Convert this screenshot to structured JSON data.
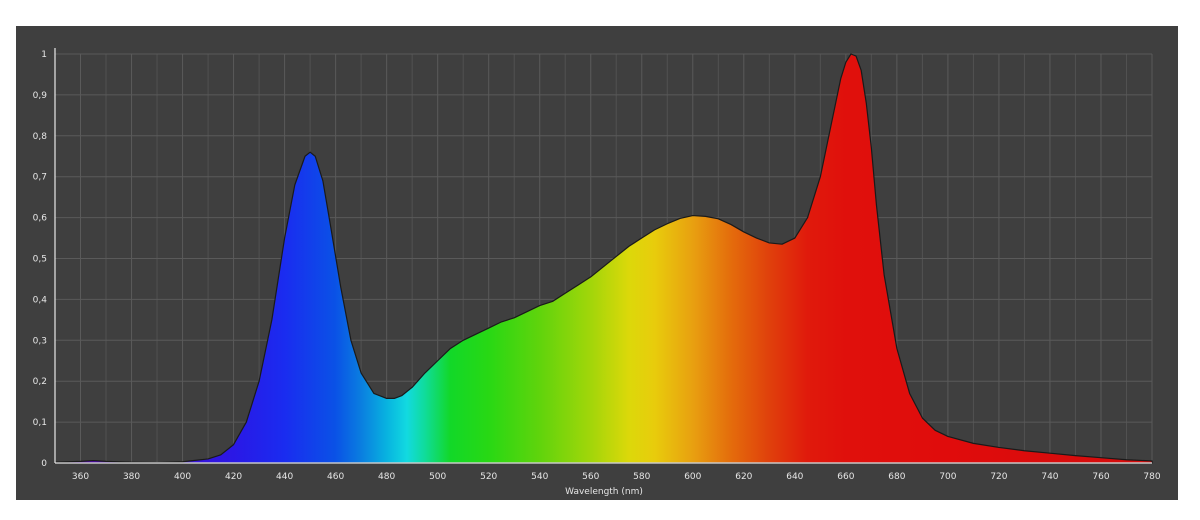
{
  "chart_data": {
    "type": "area",
    "title": "",
    "xlabel": "Wavelength (nm)",
    "ylabel": "",
    "xlim": [
      350,
      780
    ],
    "ylim": [
      0,
      1
    ],
    "grid": true,
    "x_ticks": [
      "360",
      "380",
      "400",
      "420",
      "440",
      "460",
      "480",
      "500",
      "520",
      "540",
      "560",
      "580",
      "600",
      "620",
      "640",
      "660",
      "680",
      "700",
      "720",
      "740",
      "760",
      "780"
    ],
    "y_ticks": [
      "0",
      "0,1",
      "0,2",
      "0,3",
      "0,4",
      "0,5",
      "0,6",
      "0,7",
      "0,8",
      "0,9",
      "1"
    ],
    "fill": "visible-spectrum gradient",
    "series": [
      {
        "x": [
          350,
          360,
          365,
          370,
          380,
          390,
          400,
          410,
          415,
          420,
          425,
          430,
          435,
          440,
          444,
          448,
          450,
          452,
          455,
          458,
          462,
          466,
          470,
          475,
          480,
          483,
          486,
          490,
          495,
          500,
          505,
          510,
          515,
          520,
          525,
          530,
          535,
          540,
          545,
          550,
          555,
          560,
          565,
          570,
          575,
          580,
          585,
          590,
          595,
          600,
          605,
          610,
          615,
          620,
          625,
          630,
          635,
          640,
          645,
          650,
          655,
          658,
          660,
          662,
          664,
          666,
          668,
          670,
          672,
          675,
          680,
          685,
          690,
          695,
          700,
          710,
          720,
          730,
          740,
          750,
          760,
          770,
          780
        ],
        "y": [
          0.002,
          0.004,
          0.006,
          0.004,
          0.002,
          0.001,
          0.003,
          0.01,
          0.02,
          0.045,
          0.1,
          0.2,
          0.35,
          0.55,
          0.68,
          0.75,
          0.76,
          0.75,
          0.69,
          0.58,
          0.43,
          0.3,
          0.22,
          0.17,
          0.158,
          0.158,
          0.165,
          0.185,
          0.22,
          0.25,
          0.28,
          0.3,
          0.315,
          0.33,
          0.345,
          0.355,
          0.37,
          0.385,
          0.395,
          0.415,
          0.435,
          0.455,
          0.48,
          0.505,
          0.53,
          0.55,
          0.57,
          0.585,
          0.598,
          0.605,
          0.603,
          0.597,
          0.583,
          0.565,
          0.55,
          0.538,
          0.535,
          0.55,
          0.6,
          0.7,
          0.85,
          0.94,
          0.98,
          1.0,
          0.995,
          0.96,
          0.88,
          0.77,
          0.63,
          0.46,
          0.28,
          0.17,
          0.11,
          0.08,
          0.065,
          0.048,
          0.038,
          0.03,
          0.024,
          0.018,
          0.013,
          0.008,
          0.005
        ]
      }
    ]
  }
}
